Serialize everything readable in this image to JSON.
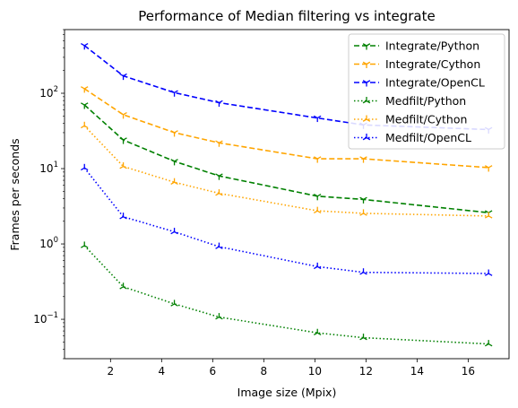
{
  "chart_data": {
    "type": "line",
    "title": "Performance of Median filtering vs integrate",
    "xlabel": "Image size (Mpix)",
    "ylabel": "Frames per seconds",
    "xlim": [
      0.2,
      17.6
    ],
    "ylim": [
      0.03,
      700
    ],
    "yscale": "log",
    "x_ticks": [
      2,
      4,
      6,
      8,
      10,
      12,
      14,
      16
    ],
    "y_ticks": [
      {
        "value": 0.1,
        "base": "10",
        "exp": "−1"
      },
      {
        "value": 1,
        "base": "10",
        "exp": "0"
      },
      {
        "value": 10,
        "base": "10",
        "exp": "1"
      },
      {
        "value": 100,
        "base": "10",
        "exp": "2"
      }
    ],
    "legend_placement": "top-right",
    "x": [
      0.98,
      2.5,
      4.5,
      6.25,
      10.1,
      11.9,
      16.8
    ],
    "series": [
      {
        "name": "Integrate/Python",
        "color": "#008000",
        "dash": "dashed",
        "marker": "tri_down",
        "values": [
          70,
          24,
          12.5,
          8,
          4.3,
          3.9,
          2.6
        ]
      },
      {
        "name": "Integrate/Cython",
        "color": "#ffa500",
        "dash": "dashed",
        "marker": "tri_down",
        "values": [
          115,
          52,
          30,
          22,
          13.5,
          13.5,
          10.3
        ]
      },
      {
        "name": "Integrate/OpenCL",
        "color": "#0000ff",
        "dash": "dashed",
        "marker": "tri_down",
        "values": [
          430,
          170,
          102,
          75,
          47,
          38,
          33
        ]
      },
      {
        "name": "Medfilt/Python",
        "color": "#008000",
        "dash": "dotted",
        "marker": "tri_up",
        "values": [
          0.95,
          0.27,
          0.16,
          0.107,
          0.066,
          0.057,
          0.047
        ]
      },
      {
        "name": "Medfilt/Cython",
        "color": "#ffa500",
        "dash": "dotted",
        "marker": "tri_up",
        "values": [
          37,
          10.7,
          6.6,
          4.7,
          2.75,
          2.55,
          2.35
        ]
      },
      {
        "name": "Medfilt/OpenCL",
        "color": "#0000ff",
        "dash": "dotted",
        "marker": "tri_up",
        "values": [
          10.2,
          2.3,
          1.45,
          0.92,
          0.5,
          0.42,
          0.405
        ]
      }
    ]
  }
}
